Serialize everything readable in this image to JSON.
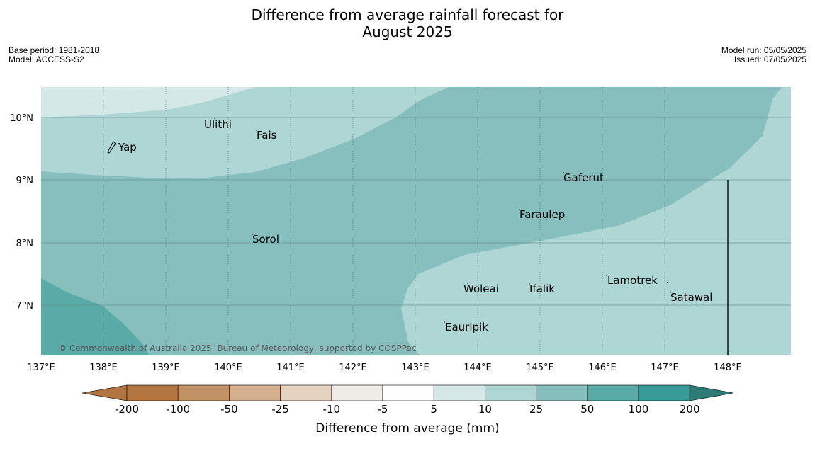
{
  "title_line1": "Difference from average rainfall forecast for",
  "title_line2": "August 2025",
  "base_period": "Base period: 1981-2018",
  "model": "Model: ACCESS-S2",
  "model_run": "Model run: 05/05/2025",
  "issued": "Issued: 07/05/2025",
  "copyright": "© Commonwealth of Australia 2025, Bureau of Meteorology, supported by COSPPac",
  "lon_labels": [
    "137°E",
    "138°E",
    "139°E",
    "140°E",
    "141°E",
    "142°E",
    "143°E",
    "144°E",
    "145°E",
    "146°E",
    "147°E",
    "148°E"
  ],
  "lat_labels": [
    "10°N",
    "9°N",
    "8°N",
    "7°N"
  ],
  "places": [
    {
      "name": "Ulithi"
    },
    {
      "name": "Fais"
    },
    {
      "name": "Yap"
    },
    {
      "name": "Gaferut"
    },
    {
      "name": "Faraulep"
    },
    {
      "name": "Sorol"
    },
    {
      "name": "Woleai"
    },
    {
      "name": "Ifalik"
    },
    {
      "name": "Lamotrek"
    },
    {
      "name": "Satawal"
    },
    {
      "name": "Eauripik"
    }
  ],
  "colorbar": {
    "title": "Difference from average (mm)",
    "labels": [
      "-200",
      "-100",
      "-50",
      "-25",
      "-10",
      "-5",
      "5",
      "10",
      "25",
      "50",
      "100",
      "200"
    ],
    "colors": [
      "#b07540",
      "#c19168",
      "#d4b08e",
      "#e5d2c1",
      "#efebe6",
      "#ffffff",
      "#d3e8e7",
      "#aed6d5",
      "#86bfbe",
      "#5aaaa8",
      "#369b99",
      "#2d7a77"
    ]
  },
  "legend_colors": {
    "low": "#d3e8e7",
    "mid": "#aed6d5",
    "high": "#86bfbe",
    "top": "#5aaaa8"
  }
}
